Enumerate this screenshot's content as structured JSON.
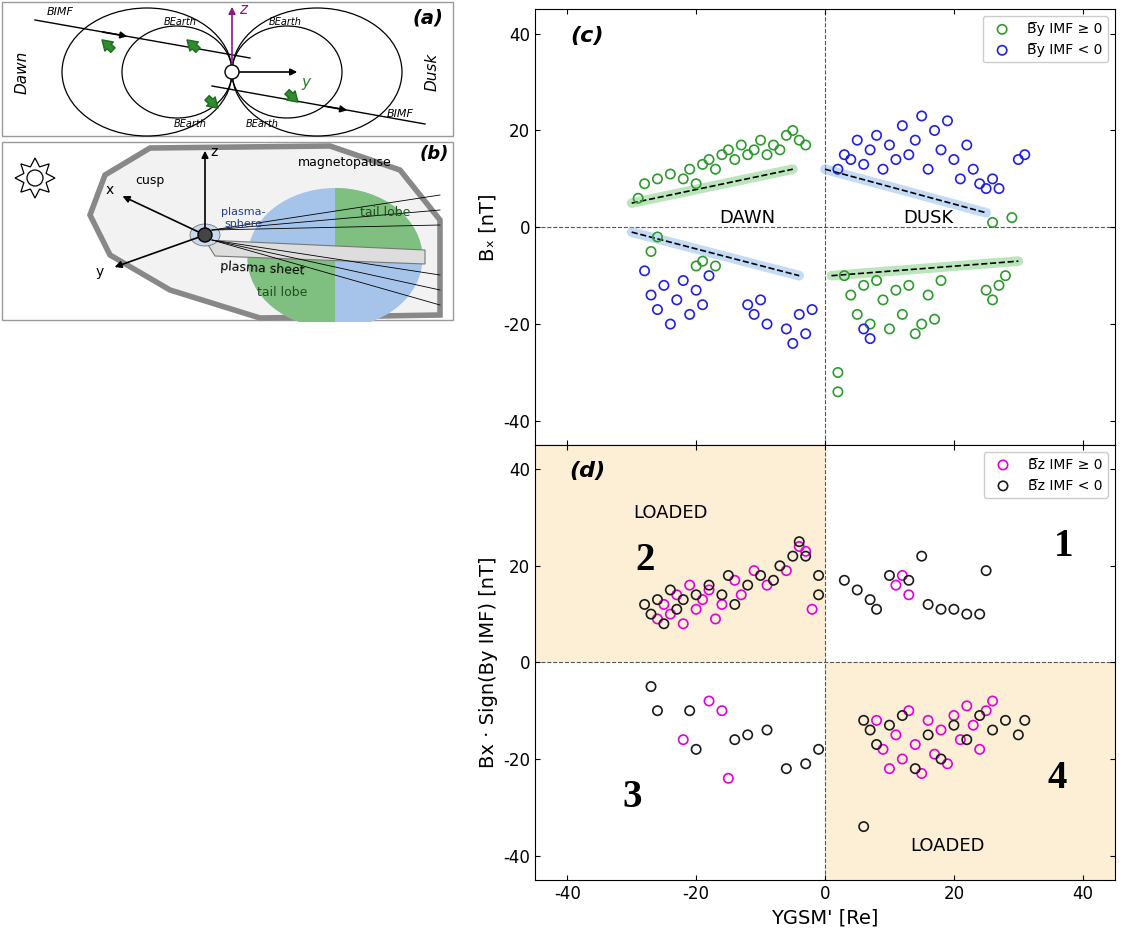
{
  "diagram_a": {
    "panel_label": "(a)",
    "axis_z": "z",
    "axis_y": "y",
    "dawn": "Dawn",
    "dusk": "Dusk",
    "imf_labels": [
      "BIMF",
      "BIMF"
    ],
    "earth_labels": [
      "BEarth",
      "BEarth",
      "BEarth",
      "BEarth"
    ]
  },
  "diagram_b": {
    "panel_label": "(b)",
    "axis_x": "x",
    "axis_y": "y",
    "axis_z": "z",
    "cusp": "cusp",
    "magnetopause": "magnetopause",
    "plasmasphere": "plasma-\nsphere",
    "plasma_sheet": "plasma sheet",
    "tail_lobe_upper": "tail lobe",
    "tail_lobe_lower": "tail lobe"
  },
  "chart_data": [
    {
      "type": "scatter",
      "panel_label": "(c)",
      "y_label": "Bₓ [nT]",
      "xlim": [
        -45,
        45
      ],
      "ylim": [
        -45,
        45
      ],
      "xticks": [
        -40,
        -20,
        0,
        20,
        40
      ],
      "yticks": [
        -40,
        -20,
        0,
        20,
        40
      ],
      "tick_labels": "y",
      "marker": "circle",
      "legend": "upper right",
      "reference_lines": {
        "x": 0,
        "y": 0
      },
      "annotations": [
        "DAWN",
        "DUSK"
      ],
      "fit_lines": [
        {
          "color": "#8fd68f",
          "line_style": "dashed",
          "x": [
            -30,
            -5
          ],
          "values": [
            5,
            12
          ]
        },
        {
          "color": "#9cc3ef",
          "line_style": "dashed",
          "x": [
            0,
            25
          ],
          "values": [
            12,
            3
          ]
        },
        {
          "color": "#9cc3ef",
          "line_style": "dashed",
          "x": [
            -30,
            -4
          ],
          "values": [
            -1,
            -10
          ]
        },
        {
          "color": "#8fd68f",
          "line_style": "dashed",
          "x": [
            1,
            30
          ],
          "values": [
            -10,
            -7
          ]
        }
      ],
      "series": [
        {
          "name": "B̅y IMF ≥ 0",
          "color": "#2e9a2e",
          "x": [
            -29,
            -28,
            -26,
            -24,
            -22,
            -21,
            -20,
            -19,
            -18,
            -17,
            -16,
            -15,
            -14,
            -13,
            -12,
            -11,
            -10,
            -9,
            -8,
            -7,
            -6,
            -5,
            -4,
            -3,
            -27,
            -26,
            -20,
            -19,
            -17,
            3,
            4,
            5,
            6,
            7,
            8,
            9,
            10,
            11,
            12,
            13,
            14,
            15,
            16,
            17,
            18,
            25,
            26,
            27,
            28,
            2,
            2,
            26,
            29
          ],
          "values": [
            6,
            9,
            10,
            11,
            10,
            12,
            9,
            13,
            14,
            12,
            15,
            16,
            14,
            17,
            15,
            16,
            18,
            15,
            17,
            16,
            19,
            20,
            18,
            17,
            -5,
            -2,
            -8,
            -7,
            -8,
            -10,
            -14,
            -18,
            -12,
            -20,
            -11,
            -15,
            -21,
            -13,
            -18,
            -12,
            -22,
            -20,
            -14,
            -19,
            -11,
            -13,
            -15,
            -12,
            -10,
            -30,
            -34,
            1,
            2
          ]
        },
        {
          "name": "B̅y IMF < 0",
          "color": "#2020e0",
          "x": [
            2,
            3,
            4,
            5,
            6,
            7,
            8,
            9,
            10,
            11,
            12,
            13,
            14,
            15,
            16,
            17,
            18,
            19,
            20,
            21,
            22,
            23,
            24,
            25,
            26,
            27,
            30,
            31,
            -28,
            -27,
            -26,
            -25,
            -24,
            -23,
            -22,
            -21,
            -20,
            -19,
            -18,
            -12,
            -11,
            -10,
            -9,
            -6,
            -5,
            -4,
            -3,
            -2,
            6,
            7
          ],
          "values": [
            12,
            15,
            14,
            18,
            13,
            16,
            19,
            12,
            17,
            14,
            21,
            15,
            18,
            23,
            12,
            20,
            16,
            22,
            14,
            10,
            17,
            12,
            9,
            8,
            10,
            8,
            14,
            15,
            -9,
            -14,
            -17,
            -12,
            -20,
            -15,
            -11,
            -18,
            -13,
            -16,
            -10,
            -16,
            -18,
            -15,
            -20,
            -21,
            -24,
            -18,
            -22,
            -17,
            -21,
            -23
          ]
        }
      ]
    },
    {
      "type": "scatter",
      "panel_label": "(d)",
      "x_label": "YGSM' [Re]",
      "y_label": "Bx · Sign(By IMF) [nT]",
      "xlim": [
        -45,
        45
      ],
      "ylim": [
        -45,
        45
      ],
      "xticks": [
        -40,
        -20,
        0,
        20,
        40
      ],
      "yticks": [
        -40,
        -20,
        0,
        20,
        40
      ],
      "marker": "circle",
      "legend": "upper right",
      "reference_lines": {
        "x": 0,
        "y": 0
      },
      "shaded_regions": [
        {
          "x": [
            -45,
            0
          ],
          "y": [
            0,
            45
          ],
          "color": "#fcefd6"
        },
        {
          "x": [
            0,
            45
          ],
          "y": [
            -45,
            0
          ],
          "color": "#fcefd6"
        }
      ],
      "annotations": [
        "LOADED",
        "LOADED",
        "1",
        "2",
        "3",
        "4"
      ],
      "series": [
        {
          "name": "B̅z IMF ≥ 0",
          "color": "#e000e0",
          "x": [
            -26,
            -25,
            -24,
            -23,
            -22,
            -21,
            -20,
            -19,
            -18,
            -17,
            -16,
            -14,
            -13,
            -11,
            -9,
            -6,
            -4,
            -3,
            -2,
            11,
            12,
            13,
            -22,
            -18,
            -16,
            -15,
            8,
            9,
            10,
            11,
            12,
            13,
            14,
            15,
            16,
            17,
            18,
            19,
            20,
            21,
            22,
            23,
            24,
            25,
            26
          ],
          "values": [
            9,
            12,
            10,
            14,
            8,
            16,
            11,
            13,
            15,
            9,
            12,
            17,
            14,
            19,
            16,
            19,
            24,
            23,
            11,
            16,
            18,
            14,
            -16,
            -8,
            -10,
            -24,
            -12,
            -18,
            -22,
            -15,
            -20,
            -10,
            -17,
            -23,
            -12,
            -19,
            -14,
            -21,
            -11,
            -16,
            -9,
            -13,
            -18,
            -10,
            -8
          ]
        },
        {
          "name": "B̅z IMF < 0",
          "color": "#1a1a1a",
          "x": [
            -28,
            -27,
            -26,
            -25,
            -24,
            -23,
            -22,
            -20,
            -18,
            -16,
            -15,
            -14,
            -12,
            -10,
            -8,
            -7,
            -5,
            -4,
            -3,
            -1,
            -1,
            3,
            5,
            7,
            8,
            10,
            13,
            15,
            16,
            18,
            20,
            22,
            24,
            25,
            -27,
            -26,
            -21,
            -20,
            -14,
            -12,
            -9,
            -6,
            -3,
            -1,
            6,
            6,
            7,
            8,
            10,
            12,
            14,
            16,
            18,
            20,
            22,
            24,
            26,
            28,
            30,
            31
          ],
          "values": [
            12,
            10,
            13,
            8,
            15,
            11,
            13,
            14,
            16,
            14,
            18,
            12,
            16,
            18,
            17,
            20,
            22,
            25,
            22,
            18,
            14,
            17,
            15,
            13,
            11,
            18,
            17,
            22,
            12,
            11,
            11,
            10,
            10,
            19,
            -5,
            -10,
            -10,
            -18,
            -16,
            -15,
            -14,
            -22,
            -21,
            -18,
            -12,
            -34,
            -14,
            -17,
            -13,
            -11,
            -22,
            -15,
            -20,
            -13,
            -16,
            -11,
            -14,
            -12,
            -15,
            -12
          ]
        }
      ]
    }
  ]
}
